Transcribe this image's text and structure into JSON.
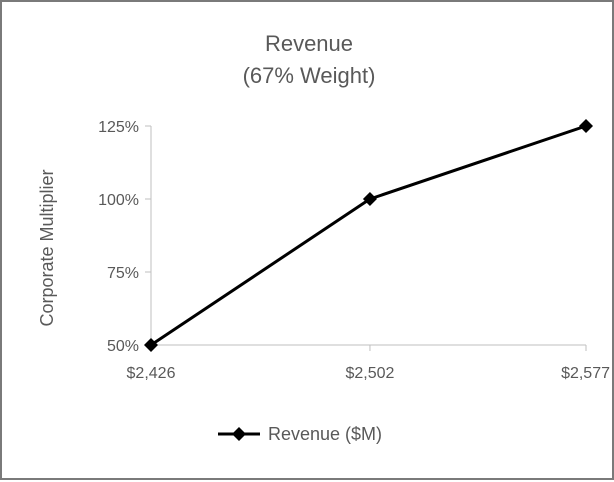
{
  "chart_data": {
    "type": "line",
    "title": "Revenue",
    "subtitle": "(67% Weight)",
    "xlabel": "",
    "ylabel": "Corporate Multiplier",
    "x": [
      2426,
      2502,
      2577
    ],
    "x_tick_labels": [
      "$2,426",
      "$2,502",
      "$2,577"
    ],
    "y_ticks": [
      50,
      75,
      100,
      125
    ],
    "y_tick_labels": [
      "50%",
      "75%",
      "100%",
      "125%"
    ],
    "ylim": [
      50,
      125
    ],
    "grid": false,
    "legend_position": "bottom",
    "series": [
      {
        "name": "Revenue ($M)",
        "values": [
          50,
          100,
          125
        ],
        "color": "#000000",
        "marker": "diamond"
      }
    ]
  }
}
